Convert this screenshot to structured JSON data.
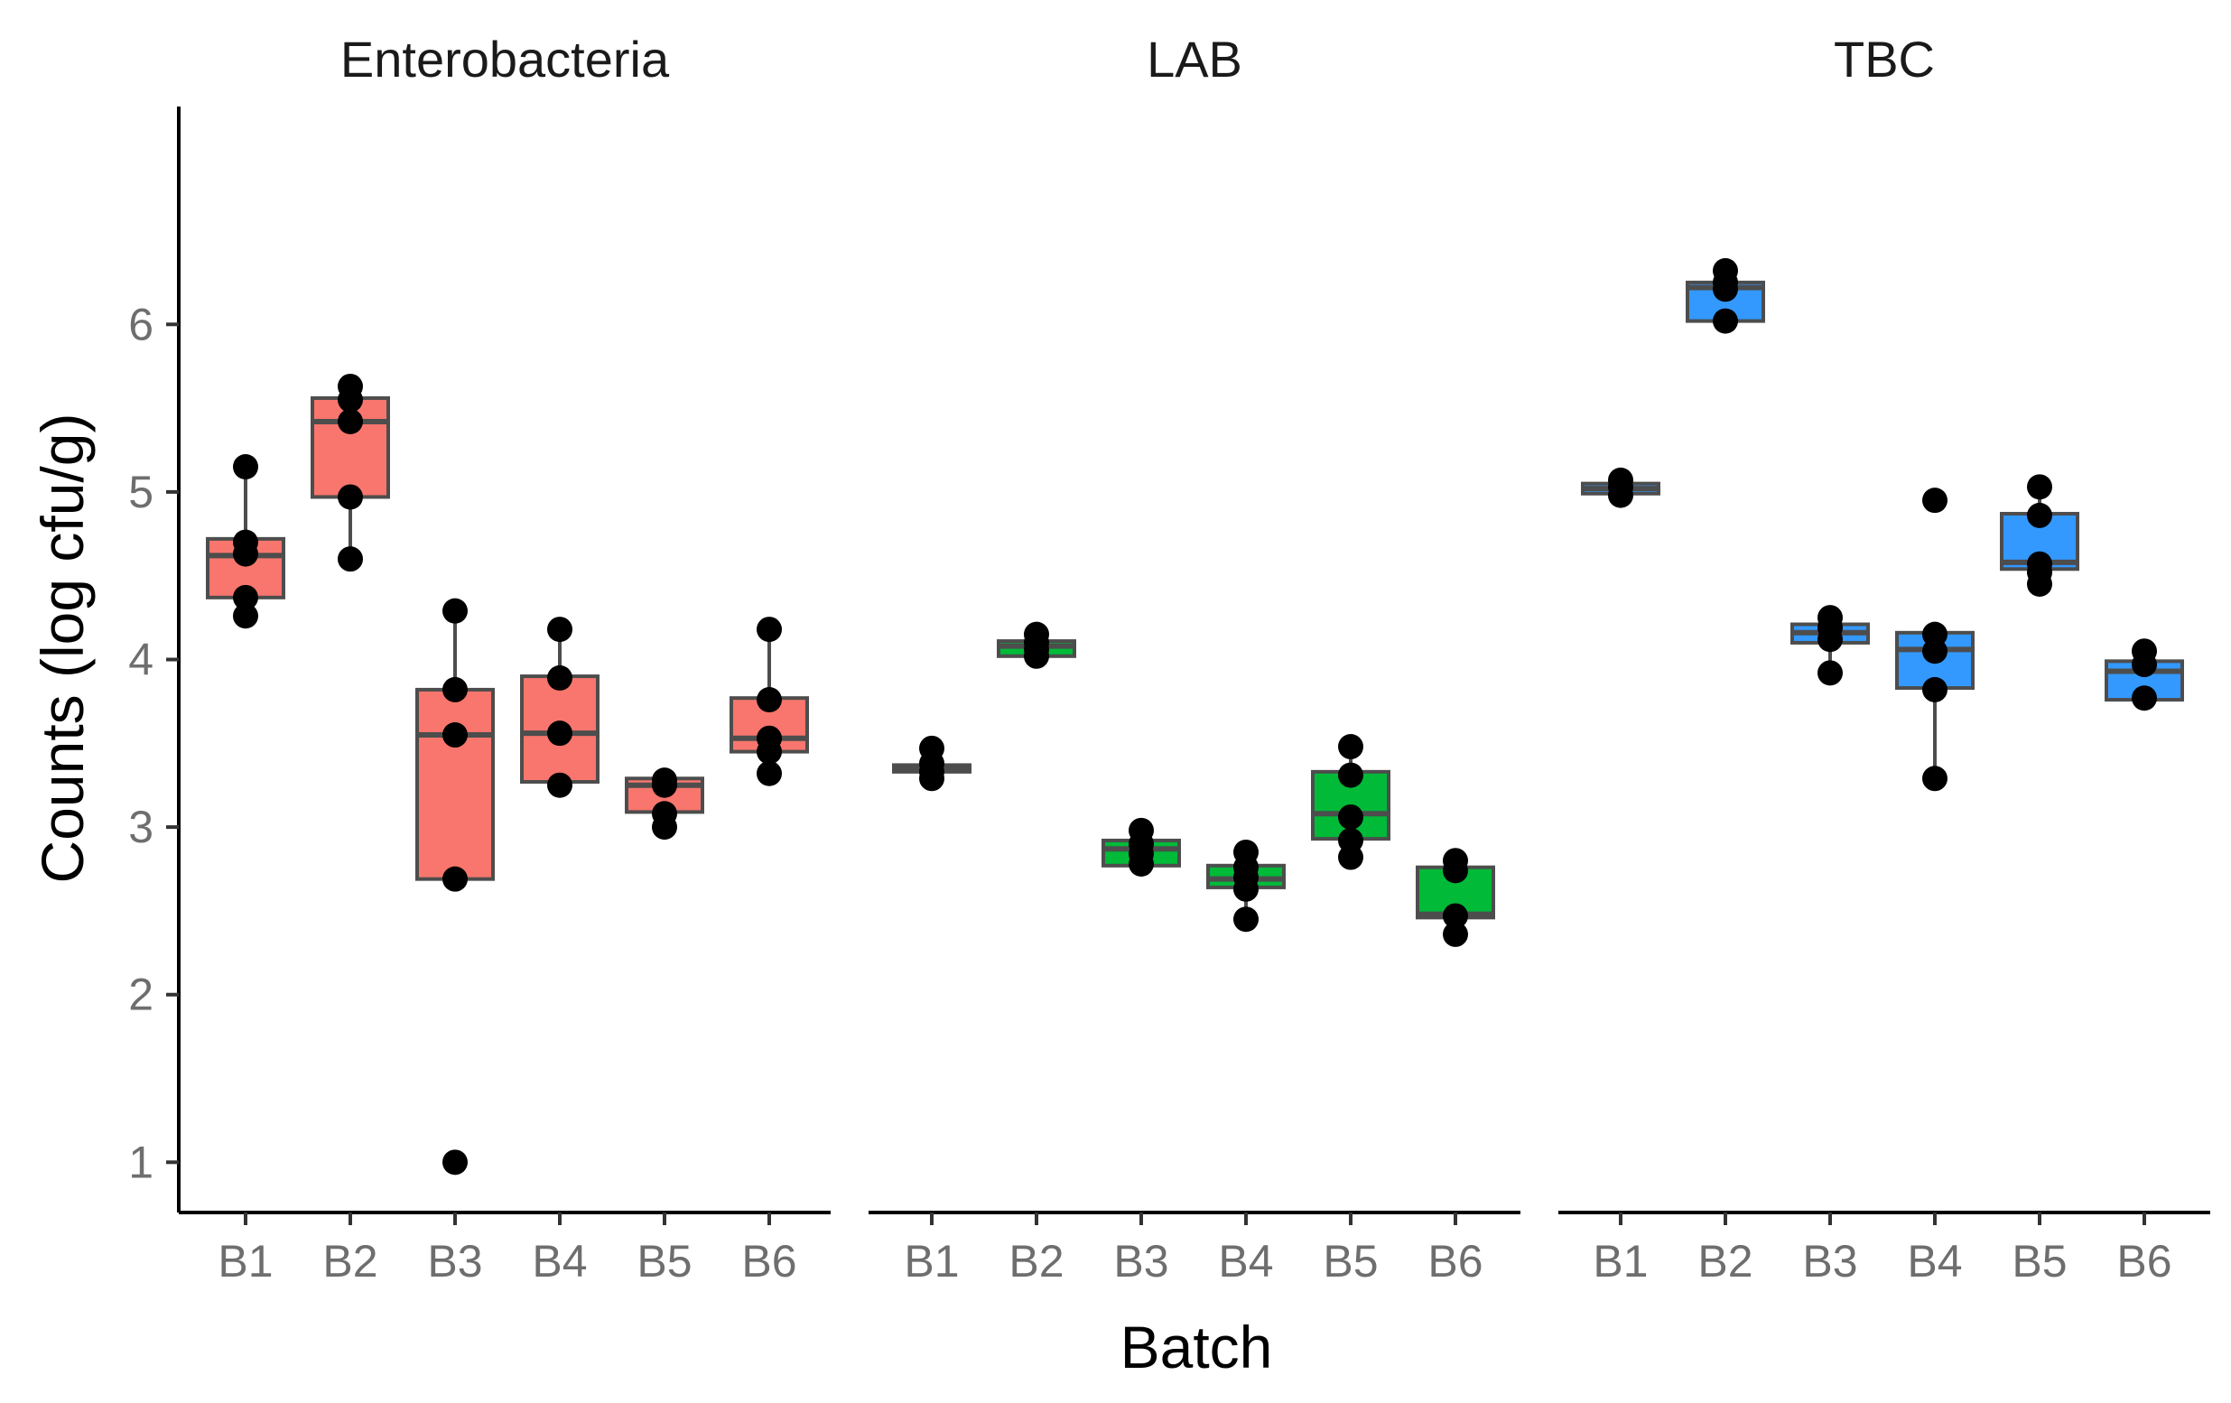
{
  "chart_data": {
    "type": "boxplot",
    "xlabel": "Batch",
    "ylabel": "Counts (log cfu/g)",
    "ylim": [
      0.7,
      7.3
    ],
    "yticks": [
      1,
      2,
      3,
      4,
      5,
      6
    ],
    "categories": [
      "B1",
      "B2",
      "B3",
      "B4",
      "B5",
      "B6"
    ],
    "box_stroke_color": "#4d4d4d",
    "point_color": "#000000",
    "facets": [
      {
        "title": "Enterobacteria",
        "fill": "#F8766D",
        "boxes": [
          {
            "category": "B1",
            "q1": 4.37,
            "median": 4.62,
            "q3": 4.72,
            "whisker_low": 4.25,
            "whisker_high": 5.15,
            "points": [
              5.15,
              4.7,
              4.63,
              4.37,
              4.26
            ]
          },
          {
            "category": "B2",
            "q1": 4.97,
            "median": 5.42,
            "q3": 5.56,
            "whisker_low": 4.6,
            "whisker_high": 5.63,
            "points": [
              5.63,
              5.55,
              5.42,
              4.97,
              4.6
            ]
          },
          {
            "category": "B3",
            "q1": 2.69,
            "median": 3.55,
            "q3": 3.82,
            "whisker_low": 2.69,
            "whisker_high": 4.29,
            "points": [
              4.29,
              3.82,
              3.55,
              2.69,
              1.0
            ]
          },
          {
            "category": "B4",
            "q1": 3.27,
            "median": 3.56,
            "q3": 3.9,
            "whisker_low": 3.25,
            "whisker_high": 4.18,
            "points": [
              4.18,
              3.89,
              3.56,
              3.25
            ]
          },
          {
            "category": "B5",
            "q1": 3.09,
            "median": 3.25,
            "q3": 3.29,
            "whisker_low": 3.0,
            "whisker_high": 3.29,
            "points": [
              3.28,
              3.25,
              3.08,
              3.0
            ]
          },
          {
            "category": "B6",
            "q1": 3.45,
            "median": 3.53,
            "q3": 3.77,
            "whisker_low": 3.32,
            "whisker_high": 4.18,
            "points": [
              4.18,
              3.76,
              3.53,
              3.45,
              3.32
            ]
          }
        ]
      },
      {
        "title": "LAB",
        "fill": "#00BA38",
        "boxes": [
          {
            "category": "B1",
            "q1": 3.33,
            "median": 3.35,
            "q3": 3.37,
            "whisker_low": 3.28,
            "whisker_high": 3.47,
            "points": [
              3.47,
              3.38,
              3.33,
              3.29
            ]
          },
          {
            "category": "B2",
            "q1": 4.02,
            "median": 4.08,
            "q3": 4.11,
            "whisker_low": 4.01,
            "whisker_high": 4.15,
            "points": [
              4.15,
              4.1,
              4.06,
              4.02
            ]
          },
          {
            "category": "B3",
            "q1": 2.77,
            "median": 2.87,
            "q3": 2.92,
            "whisker_low": 2.76,
            "whisker_high": 2.98,
            "points": [
              2.98,
              2.9,
              2.84,
              2.78
            ]
          },
          {
            "category": "B4",
            "q1": 2.64,
            "median": 2.69,
            "q3": 2.77,
            "whisker_low": 2.45,
            "whisker_high": 2.85,
            "points": [
              2.85,
              2.76,
              2.7,
              2.63,
              2.45
            ]
          },
          {
            "category": "B5",
            "q1": 2.93,
            "median": 3.08,
            "q3": 3.33,
            "whisker_low": 2.81,
            "whisker_high": 3.48,
            "points": [
              3.48,
              3.31,
              3.06,
              2.92,
              2.82
            ]
          },
          {
            "category": "B6",
            "q1": 2.46,
            "median": 2.48,
            "q3": 2.76,
            "whisker_low": 2.35,
            "whisker_high": 2.8,
            "points": [
              2.8,
              2.74,
              2.47,
              2.36
            ]
          }
        ]
      },
      {
        "title": "TBC",
        "fill": "#3399FF",
        "boxes": [
          {
            "category": "B1",
            "q1": 4.99,
            "median": 5.02,
            "q3": 5.05,
            "whisker_low": 4.97,
            "whisker_high": 5.07,
            "points": [
              5.07,
              5.03,
              4.98
            ]
          },
          {
            "category": "B2",
            "q1": 6.02,
            "median": 6.22,
            "q3": 6.25,
            "whisker_low": 6.02,
            "whisker_high": 6.32,
            "points": [
              6.32,
              6.25,
              6.21,
              6.02
            ]
          },
          {
            "category": "B3",
            "q1": 4.1,
            "median": 4.16,
            "q3": 4.21,
            "whisker_low": 3.92,
            "whisker_high": 4.25,
            "points": [
              4.25,
              4.19,
              4.12,
              3.92
            ]
          },
          {
            "category": "B4",
            "q1": 3.83,
            "median": 4.06,
            "q3": 4.16,
            "whisker_low": 3.29,
            "whisker_high": 4.16,
            "points": [
              4.95,
              4.15,
              4.05,
              3.82,
              3.29
            ]
          },
          {
            "category": "B5",
            "q1": 4.54,
            "median": 4.58,
            "q3": 4.87,
            "whisker_low": 4.45,
            "whisker_high": 5.03,
            "points": [
              5.03,
              4.86,
              4.57,
              4.52,
              4.45
            ]
          },
          {
            "category": "B6",
            "q1": 3.76,
            "median": 3.93,
            "q3": 3.99,
            "whisker_low": 3.76,
            "whisker_high": 4.05,
            "points": [
              4.05,
              3.97,
              3.77
            ]
          }
        ]
      }
    ]
  }
}
